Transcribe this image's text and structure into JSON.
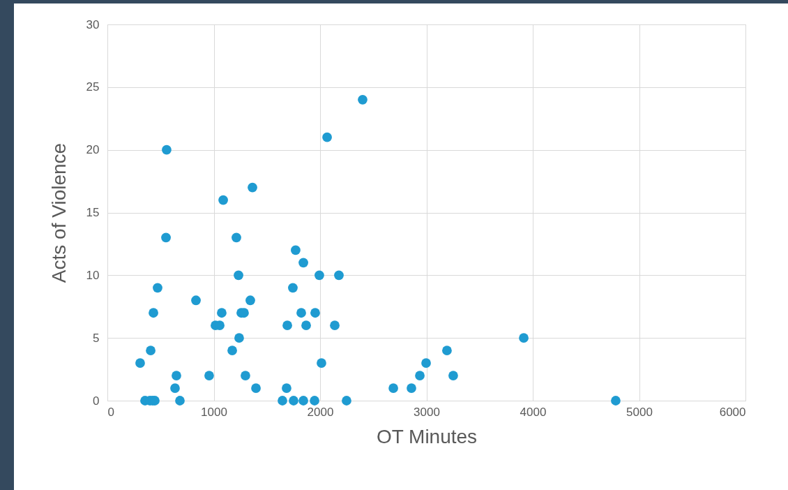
{
  "chart_data": {
    "type": "scatter",
    "xlabel": "OT Minutes",
    "ylabel": "Acts of Violence",
    "xlim": [
      0,
      6000
    ],
    "xticks": [
      0,
      1000,
      2000,
      3000,
      4000,
      5000,
      6000
    ],
    "ylim": [
      0,
      30
    ],
    "yticks": [
      0,
      5,
      10,
      15,
      20,
      25,
      30
    ],
    "grid": true,
    "marker": "circle",
    "legend": false,
    "series": [
      {
        "color": "#1f9bd1",
        "x": [
          308,
          354,
          400,
          426,
          446,
          407,
          433,
          472,
          557,
          551,
          636,
          649,
          682,
          833,
          957,
          1016,
          1056,
          1075,
          1089,
          1174,
          1213,
          1233,
          1239,
          1259,
          1285,
          1298,
          1344,
          1364,
          1397,
          1646,
          1685,
          1692,
          1744,
          1751,
          1770,
          1823,
          1843,
          1843,
          1869,
          1948,
          1954,
          1993,
          2013,
          2066,
          2138,
          2177,
          2249,
          2400,
          2689,
          2859,
          2938,
          2997,
          3193,
          3252,
          3915,
          4780
        ],
        "values": [
          3,
          0,
          0,
          0,
          0,
          4,
          7,
          9,
          20,
          13,
          1,
          2,
          0,
          8,
          2,
          6,
          6,
          7,
          16,
          4,
          13,
          10,
          5,
          7,
          7,
          2,
          8,
          17,
          1,
          0,
          1,
          6,
          9,
          0,
          12,
          7,
          11,
          0,
          6,
          0,
          7,
          10,
          3,
          21,
          6,
          10,
          0,
          24,
          1,
          1,
          2,
          3,
          4,
          2,
          5,
          0
        ]
      }
    ]
  }
}
